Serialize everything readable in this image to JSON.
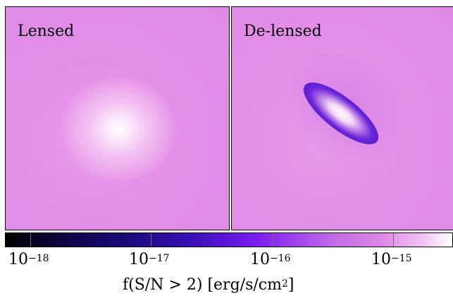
{
  "panels": {
    "left_title": "Lensed",
    "right_title": "De-lensed"
  },
  "colorbar": {
    "ticks": [
      {
        "base": "10",
        "exp": "−18"
      },
      {
        "base": "10",
        "exp": "−17"
      },
      {
        "base": "10",
        "exp": "−16"
      },
      {
        "base": "10",
        "exp": "−15"
      }
    ],
    "label_prefix": "f(S/N > 2) [erg/s/cm",
    "label_exp": "2",
    "label_suffix": "]",
    "colormap": [
      "#000000",
      "#1a0b7a",
      "#7a1cf2",
      "#dc86e4",
      "#ffffff"
    ]
  }
}
